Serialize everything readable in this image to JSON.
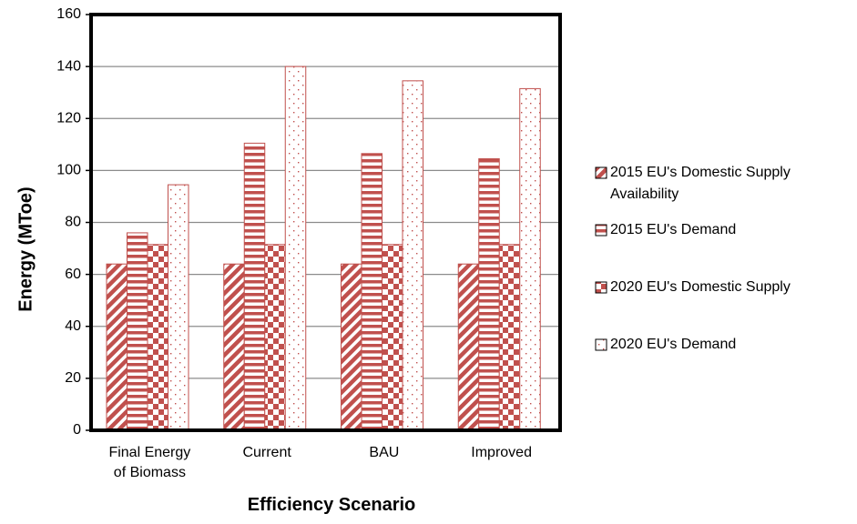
{
  "chart_data": {
    "type": "bar",
    "xlabel": "Efficiency Scenario",
    "ylabel": "Energy (MToe)",
    "ylim": [
      0,
      160
    ],
    "yticks": [
      0,
      20,
      40,
      60,
      80,
      100,
      120,
      140,
      160
    ],
    "grid": true,
    "legend_position": "right",
    "categories": [
      [
        "Final Energy",
        "of Biomass"
      ],
      [
        "Current"
      ],
      [
        "BAU"
      ],
      [
        "Improved"
      ]
    ],
    "series": [
      {
        "name": [
          "2015 EU's Domestic Supply",
          "Availability"
        ],
        "values": [
          64,
          64,
          64,
          64
        ],
        "pattern": "diagonal",
        "color": "#c0504d"
      },
      {
        "name": [
          "2015 EU's Demand"
        ],
        "values": [
          76,
          110.5,
          106.5,
          104.5
        ],
        "pattern": "horizontal",
        "color": "#c0504d"
      },
      {
        "name": [
          "2020 EU's Domestic Supply"
        ],
        "values": [
          71.5,
          71.5,
          71.5,
          71.5
        ],
        "pattern": "checker",
        "color": "#c0504d"
      },
      {
        "name": [
          "2020 EU's Demand"
        ],
        "values": [
          94.5,
          140,
          134.5,
          131.5
        ],
        "pattern": "dots",
        "color": "#c0504d"
      }
    ]
  }
}
